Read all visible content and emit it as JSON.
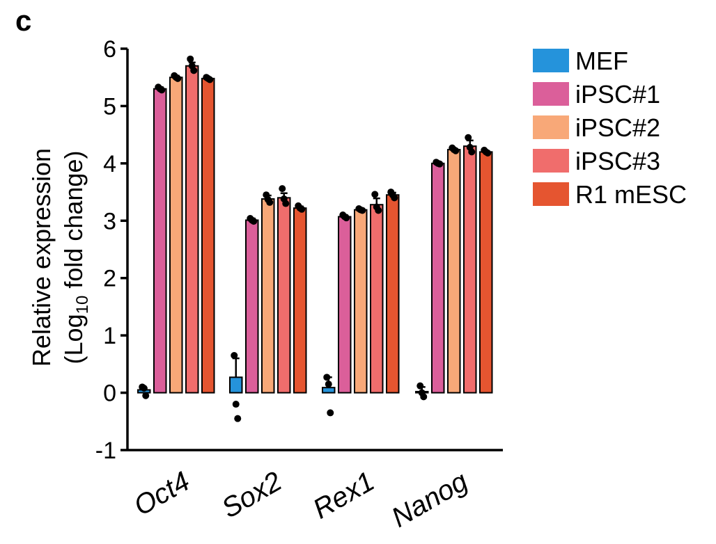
{
  "panel_label": "c",
  "chart_data": {
    "type": "bar",
    "title": "",
    "ylabel_line1": "Relative expression",
    "ylabel_line2_prefix": "(Log",
    "ylabel_line2_sub": "10",
    "ylabel_line2_suffix": " fold change)",
    "xlabel": "",
    "ylim": [
      -1,
      6
    ],
    "yticks": [
      -1,
      0,
      1,
      2,
      3,
      4,
      5,
      6
    ],
    "categories": [
      "Oct4",
      "Sox2",
      "Rex1",
      "Nanog"
    ],
    "legend_position": "top-right",
    "series": [
      {
        "name": "MEF",
        "color": "#2593db",
        "values": [
          0.05,
          0.27,
          0.09,
          0.02
        ],
        "errors": [
          0.03,
          0.33,
          0.18,
          0.08
        ],
        "points": [
          [
            0.1,
            0.08,
            -0.05
          ],
          [
            0.65,
            -0.2,
            -0.45
          ],
          [
            0.27,
            0.15,
            -0.35
          ],
          [
            0.12,
            0.0,
            -0.07
          ]
        ]
      },
      {
        "name": "iPSC#1",
        "color": "#db5f9a",
        "values": [
          5.3,
          3.01,
          3.07,
          4.0
        ],
        "errors": [
          0.03,
          0.03,
          0.03,
          0.02
        ],
        "points": [
          [
            5.33,
            5.3,
            5.28
          ],
          [
            3.04,
            3.01,
            2.99
          ],
          [
            3.1,
            3.07,
            3.05
          ],
          [
            4.02,
            4.0,
            3.99
          ]
        ]
      },
      {
        "name": "iPSC#2",
        "color": "#f8a878",
        "values": [
          5.5,
          3.38,
          3.19,
          4.24
        ],
        "errors": [
          0.03,
          0.06,
          0.02,
          0.02
        ],
        "points": [
          [
            5.53,
            5.5,
            5.48
          ],
          [
            3.45,
            3.37,
            3.32
          ],
          [
            3.21,
            3.19,
            3.18
          ],
          [
            4.27,
            4.24,
            4.22
          ]
        ]
      },
      {
        "name": "iPSC#3",
        "color": "#f06d6c",
        "values": [
          5.7,
          3.4,
          3.28,
          4.3
        ],
        "errors": [
          0.06,
          0.08,
          0.11,
          0.1
        ],
        "points": [
          [
            5.82,
            5.7,
            5.62
          ],
          [
            3.56,
            3.38,
            3.3
          ],
          [
            3.46,
            3.24,
            3.18
          ],
          [
            4.45,
            4.28,
            4.2
          ]
        ]
      },
      {
        "name": "R1 mESC",
        "color": "#e55530",
        "values": [
          5.48,
          3.22,
          3.45,
          4.2
        ],
        "errors": [
          0.02,
          0.03,
          0.04,
          0.02
        ],
        "points": [
          [
            5.5,
            5.48,
            5.46
          ],
          [
            3.26,
            3.22,
            3.2
          ],
          [
            3.5,
            3.45,
            3.4
          ],
          [
            4.23,
            4.2,
            4.18
          ]
        ]
      }
    ]
  }
}
